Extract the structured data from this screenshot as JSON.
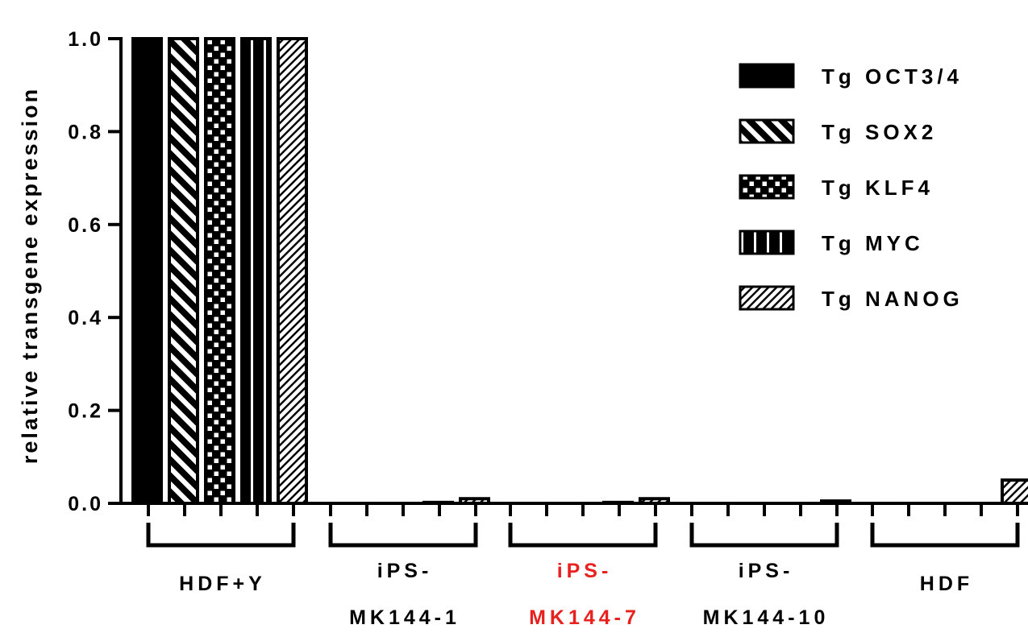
{
  "chart_data": {
    "type": "bar",
    "ylabel": "relative transgene expression",
    "xlabel": "",
    "ylim": [
      0,
      1.0
    ],
    "yticks": [
      "0.0",
      "0.2",
      "0.4",
      "0.6",
      "0.8",
      "1.0"
    ],
    "grid": false,
    "legend_position": "top-right",
    "categories": [
      {
        "lines": [
          "HDF+Y"
        ],
        "color": "#000000"
      },
      {
        "lines": [
          "iPS-",
          "MK144-1"
        ],
        "color": "#000000"
      },
      {
        "lines": [
          "iPS-",
          "MK144-7"
        ],
        "color": "#e8211f"
      },
      {
        "lines": [
          "iPS-",
          "MK144-10"
        ],
        "color": "#000000"
      },
      {
        "lines": [
          "HDF"
        ],
        "color": "#000000"
      }
    ],
    "series": [
      {
        "name": "Tg OCT3/4",
        "pattern": "solid",
        "values": [
          1.0,
          0.0,
          0.0,
          0.0,
          0.0
        ]
      },
      {
        "name": "Tg SOX2",
        "pattern": "diagonal-back",
        "values": [
          1.0,
          0.0,
          0.0,
          0.0,
          0.0
        ]
      },
      {
        "name": "Tg KLF4",
        "pattern": "checker",
        "values": [
          1.0,
          0.0,
          0.0,
          0.0,
          0.0
        ]
      },
      {
        "name": "Tg MYC",
        "pattern": "vertical",
        "values": [
          1.0,
          0.002,
          0.002,
          0.0,
          0.0
        ]
      },
      {
        "name": "Tg NANOG",
        "pattern": "diagonal-forward",
        "values": [
          1.0,
          0.01,
          0.01,
          0.005,
          0.05
        ]
      }
    ]
  }
}
